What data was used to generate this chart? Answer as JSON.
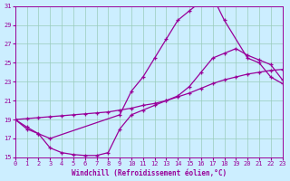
{
  "xlabel": "Windchill (Refroidissement éolien,°C)",
  "bg_color": "#cceeff",
  "line_color": "#990099",
  "grid_color": "#99ccbb",
  "xlim": [
    0,
    23
  ],
  "ylim": [
    15,
    31
  ],
  "yticks": [
    15,
    17,
    19,
    21,
    23,
    25,
    27,
    29,
    31
  ],
  "xticks": [
    0,
    1,
    2,
    3,
    4,
    5,
    6,
    7,
    8,
    9,
    10,
    11,
    12,
    13,
    14,
    15,
    16,
    17,
    18,
    19,
    20,
    21,
    22,
    23
  ],
  "line1_x": [
    0,
    1,
    2,
    3,
    9,
    10,
    11,
    12,
    13,
    14,
    15,
    16,
    17,
    18,
    20,
    21,
    22,
    23
  ],
  "line1_y": [
    19.0,
    18.2,
    17.5,
    17.0,
    19.5,
    22.0,
    23.5,
    25.5,
    27.5,
    29.5,
    30.5,
    31.5,
    32.0,
    29.5,
    25.5,
    25.0,
    23.5,
    22.8
  ],
  "line2_x": [
    0,
    1,
    2,
    3,
    4,
    5,
    6,
    7,
    8,
    9,
    10,
    11,
    12,
    13,
    14,
    15,
    16,
    17,
    18,
    19,
    20,
    21,
    22,
    23
  ],
  "line2_y": [
    19.0,
    19.1,
    19.2,
    19.3,
    19.4,
    19.5,
    19.6,
    19.7,
    19.8,
    20.0,
    20.2,
    20.5,
    20.7,
    21.0,
    21.4,
    21.8,
    22.3,
    22.8,
    23.2,
    23.5,
    23.8,
    24.0,
    24.2,
    24.3
  ],
  "line3_x": [
    0,
    1,
    2,
    3,
    4,
    5,
    6,
    7,
    8,
    9,
    10,
    11,
    12,
    13,
    14,
    15,
    16,
    17,
    18,
    19,
    20,
    21,
    22,
    23
  ],
  "line3_y": [
    19.0,
    18.0,
    17.5,
    16.0,
    15.5,
    15.3,
    15.2,
    15.2,
    15.5,
    18.0,
    19.5,
    20.0,
    20.5,
    21.0,
    21.5,
    22.5,
    24.0,
    25.5,
    26.0,
    26.5,
    25.8,
    25.3,
    24.8,
    23.2
  ]
}
